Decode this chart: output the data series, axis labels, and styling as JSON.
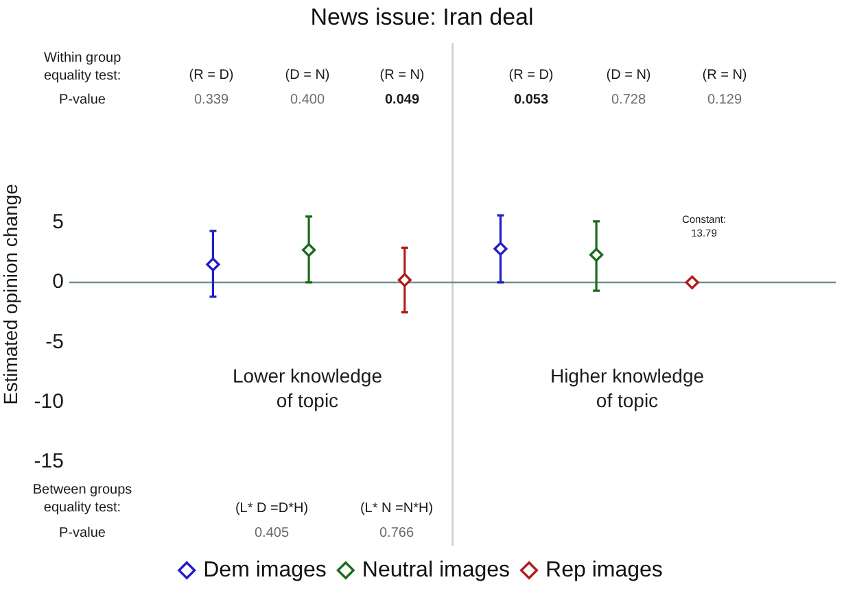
{
  "chart_data": {
    "type": "scatter",
    "title": "News issue: Iran deal",
    "ylabel": "Estimated opinion change",
    "categories": [
      null,
      null,
      null,
      null,
      null,
      null,
      null,
      null
    ],
    "series": [
      {
        "name": "Dem images",
        "color": "#1f1fc8",
        "values": [
          null,
          1.5,
          null,
          null,
          2.8,
          null,
          null,
          null
        ],
        "errors": [
          null,
          [
            -1.2,
            4.3
          ],
          null,
          null,
          [
            0.0,
            5.6
          ],
          null,
          null,
          null
        ]
      },
      {
        "name": "Neutral images",
        "color": "#1a6b1a",
        "values": [
          null,
          null,
          2.7,
          null,
          null,
          2.3,
          null,
          null
        ],
        "errors": [
          null,
          null,
          [
            0.0,
            5.5
          ],
          null,
          null,
          [
            -0.7,
            5.1
          ],
          null,
          null
        ]
      },
      {
        "name": "Rep images",
        "color": "#b31b1b",
        "values": [
          null,
          null,
          null,
          0.2,
          null,
          null,
          0.0,
          null
        ],
        "errors": [
          null,
          null,
          null,
          [
            -2.5,
            2.9
          ],
          null,
          null,
          null,
          null
        ]
      }
    ],
    "ylim": [
      -22,
      20
    ],
    "yticks": [
      5,
      0,
      -5,
      -10,
      -15
    ],
    "tick_labels": "y",
    "marker": "diamond",
    "legend": "bottom",
    "ref_lines": [
      {
        "axis": "y",
        "value": 0,
        "color": "#6f918a"
      }
    ],
    "annotations": [
      "Within group equality test:",
      "(R = D)",
      "(D = N)",
      "(R = N)",
      "(R = D)",
      "(D = N)",
      "(R = N)",
      "P-value",
      "0.339",
      "0.400",
      "0.049",
      "0.053",
      "0.728",
      "0.129",
      "Constant: 13.79",
      "Lower knowledge of topic",
      "Higher knowledge of topic",
      "Between groups equality test:",
      "(L* D =D*H)",
      "(L* N =N*H)",
      "P-value",
      "0.405",
      "0.766"
    ]
  }
}
